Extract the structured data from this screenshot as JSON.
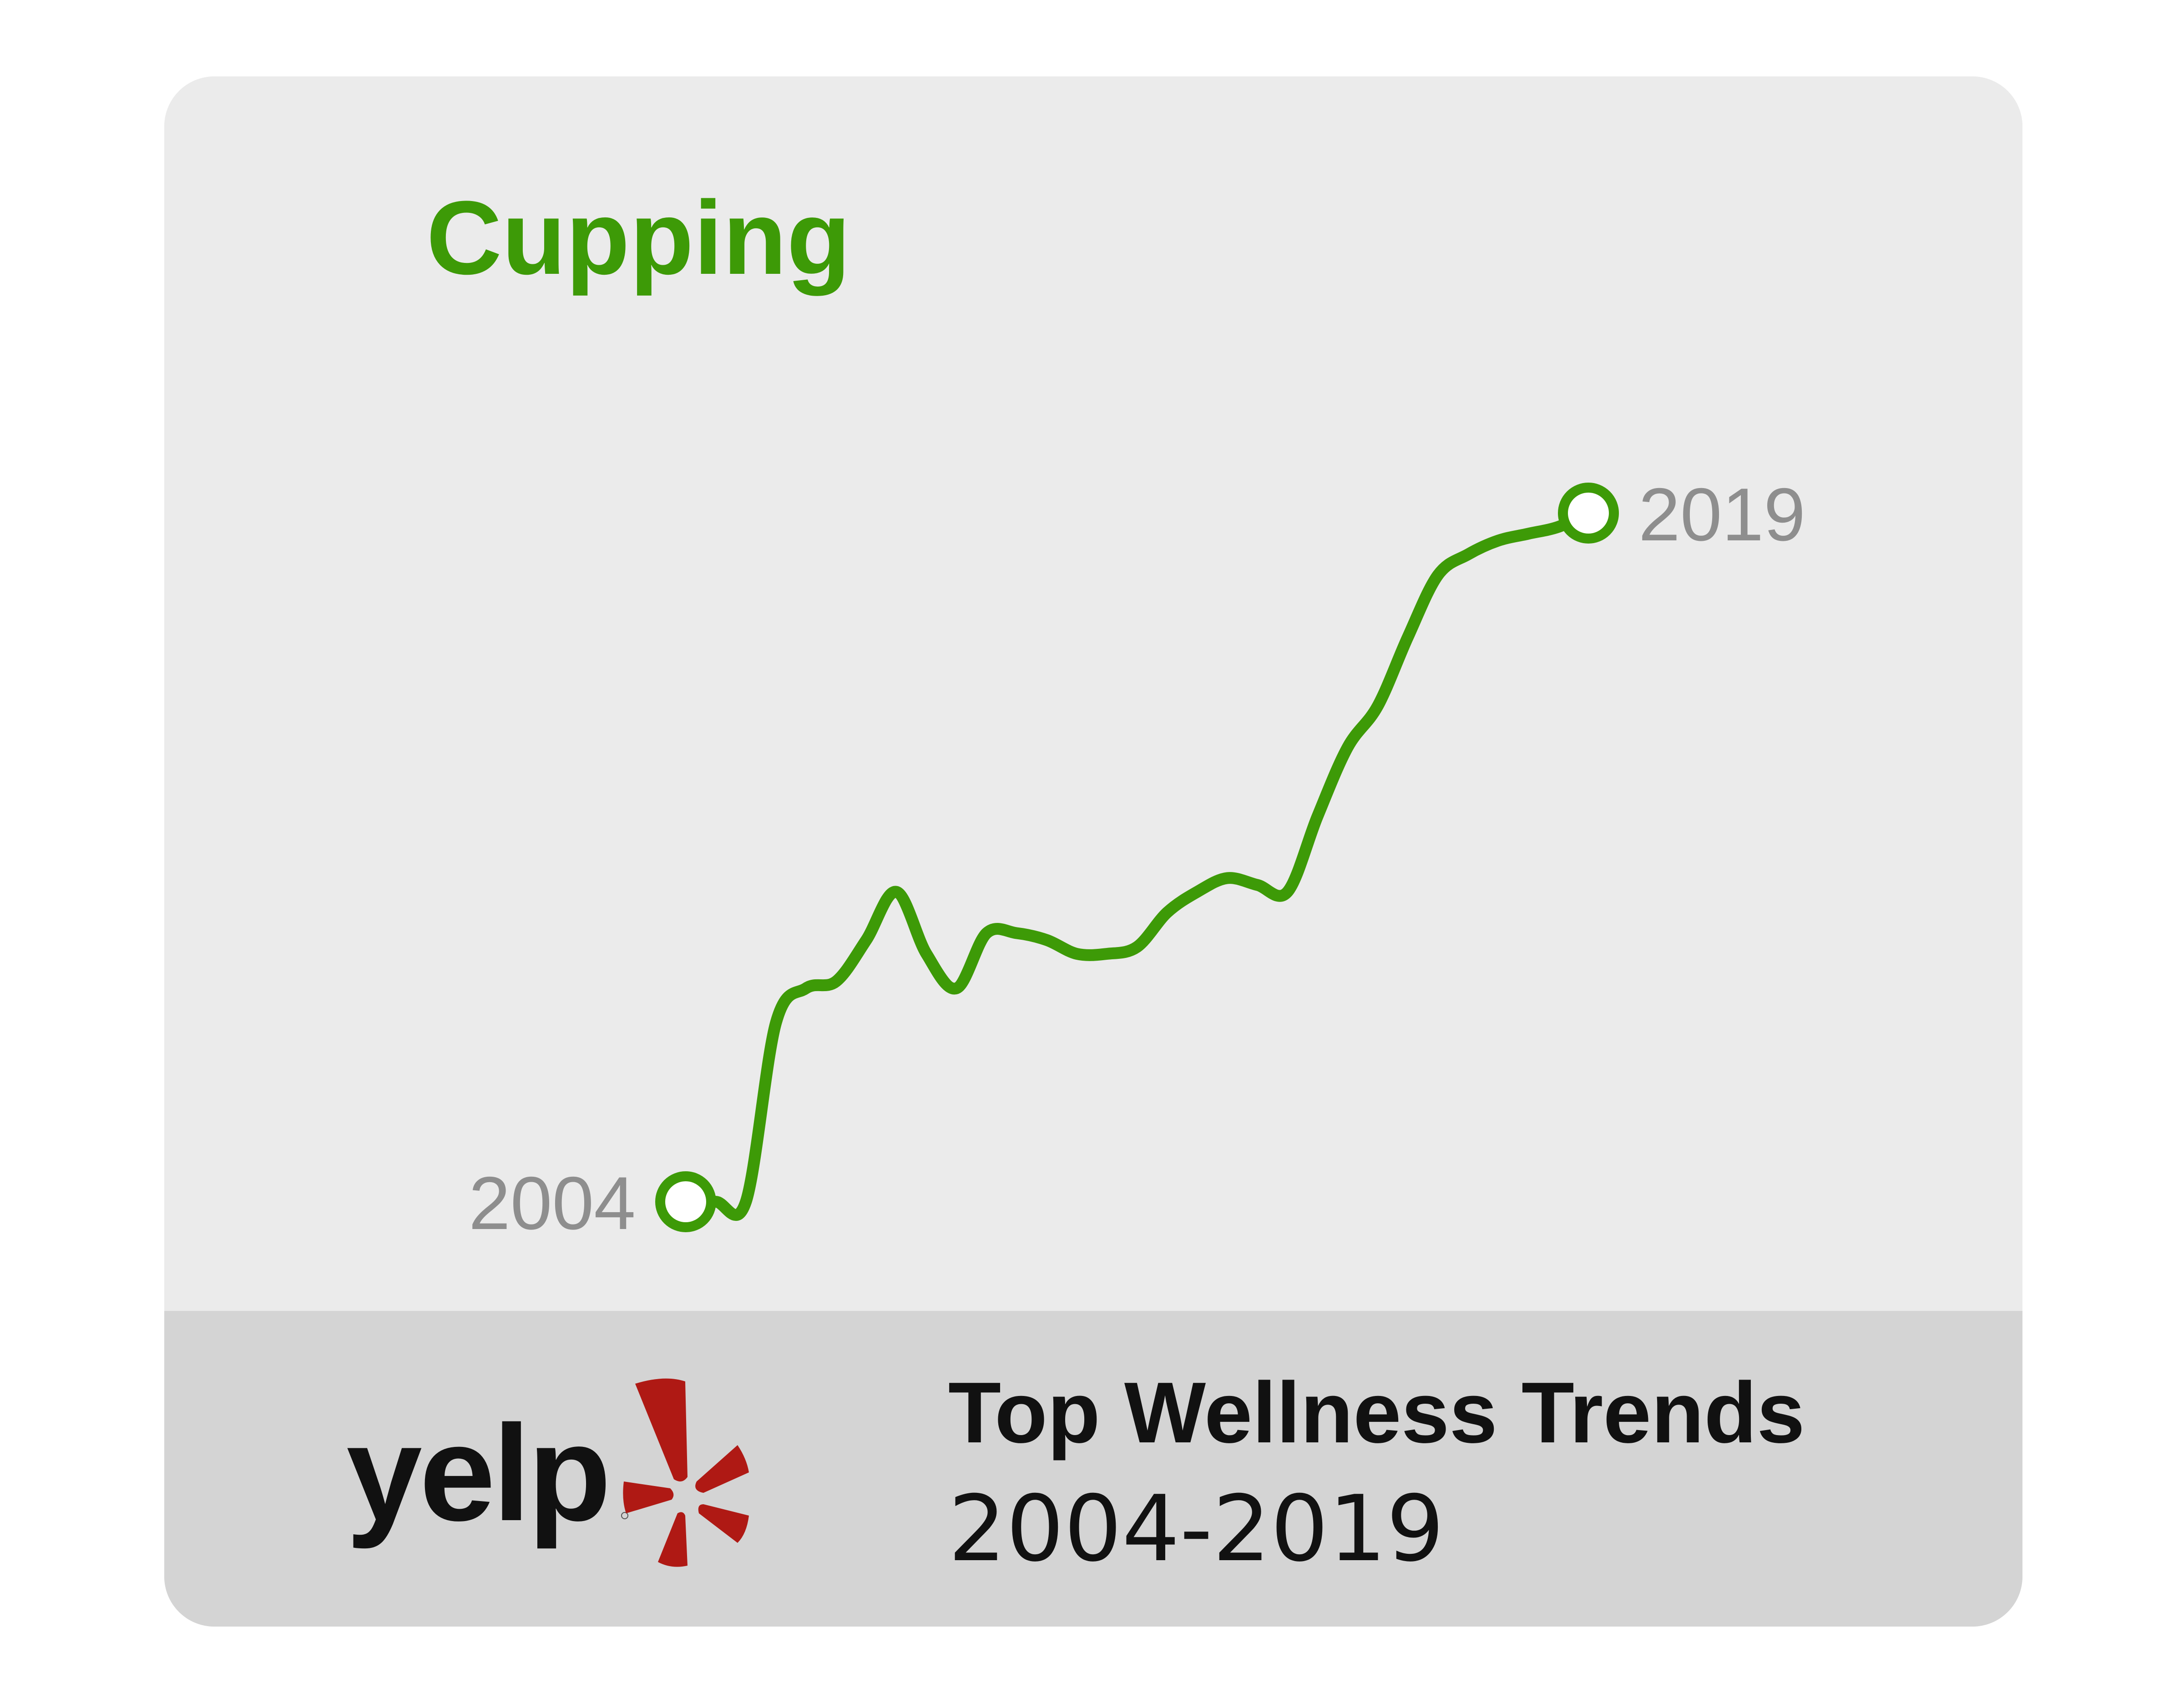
{
  "chart_data": {
    "type": "line",
    "title": "Cupping",
    "x": [
      2004,
      2004.5,
      2005,
      2005.5,
      2006,
      2006.5,
      2007,
      2007.5,
      2008,
      2008.5,
      2009,
      2009.5,
      2010,
      2010.5,
      2011,
      2011.5,
      2012,
      2012.5,
      2013,
      2013.5,
      2014,
      2014.5,
      2015,
      2015.5,
      2016,
      2016.5,
      2017,
      2017.5,
      2018,
      2018.5,
      2019
    ],
    "values": [
      0,
      0,
      0,
      26,
      31,
      32,
      38,
      45,
      36,
      31,
      39,
      39,
      38,
      36,
      36,
      37,
      42,
      45,
      47,
      46,
      45,
      56,
      66,
      72,
      82,
      91,
      94,
      96,
      97,
      98,
      100
    ],
    "xlim": [
      2004,
      2019
    ],
    "ylim": [
      0,
      100
    ],
    "start_label": "2004",
    "end_label": "2019",
    "grid": false,
    "legend": "none",
    "line_color": "#3d9a07",
    "label_color": "#8e8e8e"
  },
  "footer": {
    "brand": "yelp",
    "title": "Top Wellness Trends",
    "subtitle": "2004-2019"
  },
  "colors": {
    "card_background": "#ebebeb",
    "footer_background": "#d4d4d4",
    "yelp_burst": "#af1914",
    "title_green": "#3d9a07"
  }
}
